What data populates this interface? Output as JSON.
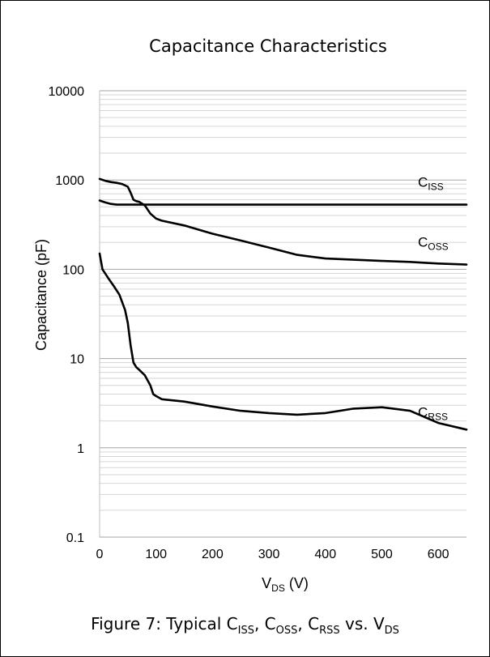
{
  "chart_data": {
    "type": "line",
    "title": "Capacitance Characteristics",
    "xlabel": {
      "main": "V",
      "sub": "DS",
      "tail": " (V)"
    },
    "ylabel": "Capacitance (pF)",
    "x_scale": "linear",
    "y_scale": "log",
    "xlim": [
      0,
      650
    ],
    "ylim": [
      0.1,
      10000
    ],
    "x_ticks": [
      0,
      100,
      200,
      300,
      400,
      500,
      600
    ],
    "y_ticks": [
      0.1,
      1,
      10,
      100,
      1000,
      10000
    ],
    "x_tick_labels": [
      "0",
      "100",
      "200",
      "300",
      "400",
      "500",
      "600"
    ],
    "y_tick_labels": [
      "0.1",
      "1",
      "10",
      "100",
      "1000",
      "10000"
    ],
    "grid": "on (log minor gridlines)",
    "series": [
      {
        "name": "C_ISS",
        "label_main": "C",
        "label_sub": "ISS",
        "x": [
          0,
          10,
          20,
          30,
          50,
          100,
          150,
          200,
          300,
          400,
          500,
          600,
          650
        ],
        "y": [
          590,
          560,
          540,
          530,
          530,
          530,
          530,
          530,
          530,
          530,
          530,
          530,
          530
        ]
      },
      {
        "name": "C_OSS",
        "label_main": "C",
        "label_sub": "OSS",
        "x": [
          0,
          10,
          20,
          30,
          40,
          50,
          55,
          60,
          65,
          70,
          80,
          90,
          100,
          110,
          150,
          200,
          250,
          300,
          350,
          400,
          450,
          500,
          550,
          600,
          650
        ],
        "y": [
          1030,
          980,
          950,
          930,
          900,
          840,
          720,
          600,
          580,
          570,
          520,
          420,
          370,
          350,
          310,
          250,
          210,
          175,
          145,
          132,
          128,
          124,
          121,
          116,
          113
        ]
      },
      {
        "name": "C_RSS",
        "label_main": "C",
        "label_sub": "RSS",
        "x": [
          0,
          5,
          15,
          25,
          35,
          45,
          50,
          55,
          60,
          65,
          70,
          80,
          90,
          95,
          100,
          110,
          150,
          200,
          250,
          300,
          350,
          400,
          450,
          500,
          550,
          600,
          650
        ],
        "y": [
          150,
          100,
          80,
          65,
          52,
          35,
          25,
          14,
          9,
          8,
          7.5,
          6.5,
          5,
          4,
          3.8,
          3.5,
          3.3,
          2.9,
          2.6,
          2.45,
          2.35,
          2.45,
          2.75,
          2.85,
          2.6,
          1.9,
          1.6
        ]
      }
    ]
  },
  "caption": {
    "prefix": "Figure 7: Typical C",
    "sub1": "ISS",
    "mid1": ", C",
    "sub2": "OSS",
    "mid2": ", C",
    "sub3": "RSS",
    "mid3": " vs. V",
    "sub4": "DS"
  }
}
